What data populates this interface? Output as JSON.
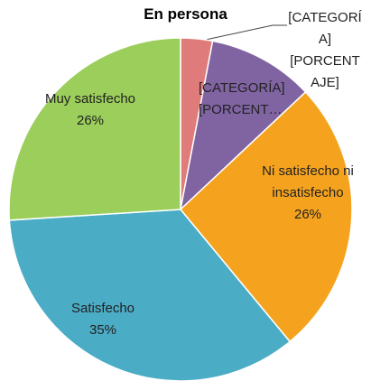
{
  "chart_data": {
    "type": "pie",
    "title": "En persona",
    "categories": [
      "[CATEGORÍA]",
      "[CATEGORÍA]",
      "Ni satisfecho ni insatisfecho",
      "Satisfecho",
      "Muy satisfecho"
    ],
    "values": [
      3,
      10,
      26,
      35,
      26
    ],
    "value_labels": [
      "[PORCENTAJE]",
      "[PORCENT…",
      "26%",
      "35%",
      "26%"
    ],
    "colors": [
      "#e07b7b",
      "#8064a2",
      "#f5a31e",
      "#4bacc6",
      "#9bce5a"
    ]
  }
}
